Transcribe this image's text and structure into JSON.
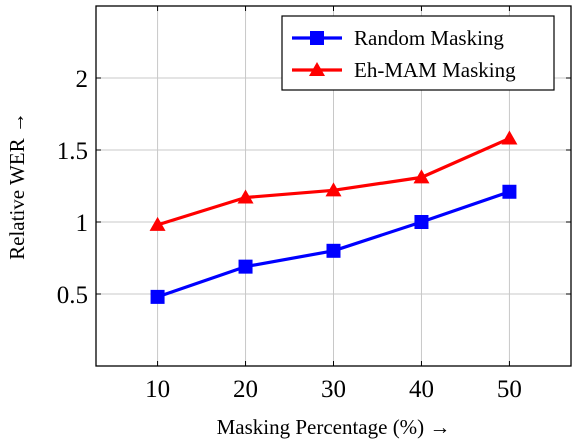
{
  "chart_data": {
    "type": "line",
    "x": [
      10,
      20,
      30,
      40,
      50
    ],
    "xlabel": "Masking Percentage (%) →",
    "ylabel": "Relative WER →",
    "xlim": [
      3,
      57
    ],
    "ylim": [
      0.0,
      2.5
    ],
    "xticks": [
      10,
      20,
      30,
      40,
      50
    ],
    "yticks": [
      0.5,
      1,
      1.5,
      2
    ],
    "ytick_labels": [
      "0.5",
      "1",
      "1.5",
      "2"
    ],
    "grid": true,
    "legend_position": "top-right",
    "series": [
      {
        "name": "Random Masking",
        "color": "#0000ff",
        "marker": "square",
        "values": [
          0.48,
          0.69,
          0.8,
          1.0,
          1.21
        ]
      },
      {
        "name": "Eh-MAM Masking",
        "color": "#ff0000",
        "marker": "triangle",
        "values": [
          0.98,
          1.17,
          1.22,
          1.31,
          1.58
        ]
      }
    ]
  }
}
